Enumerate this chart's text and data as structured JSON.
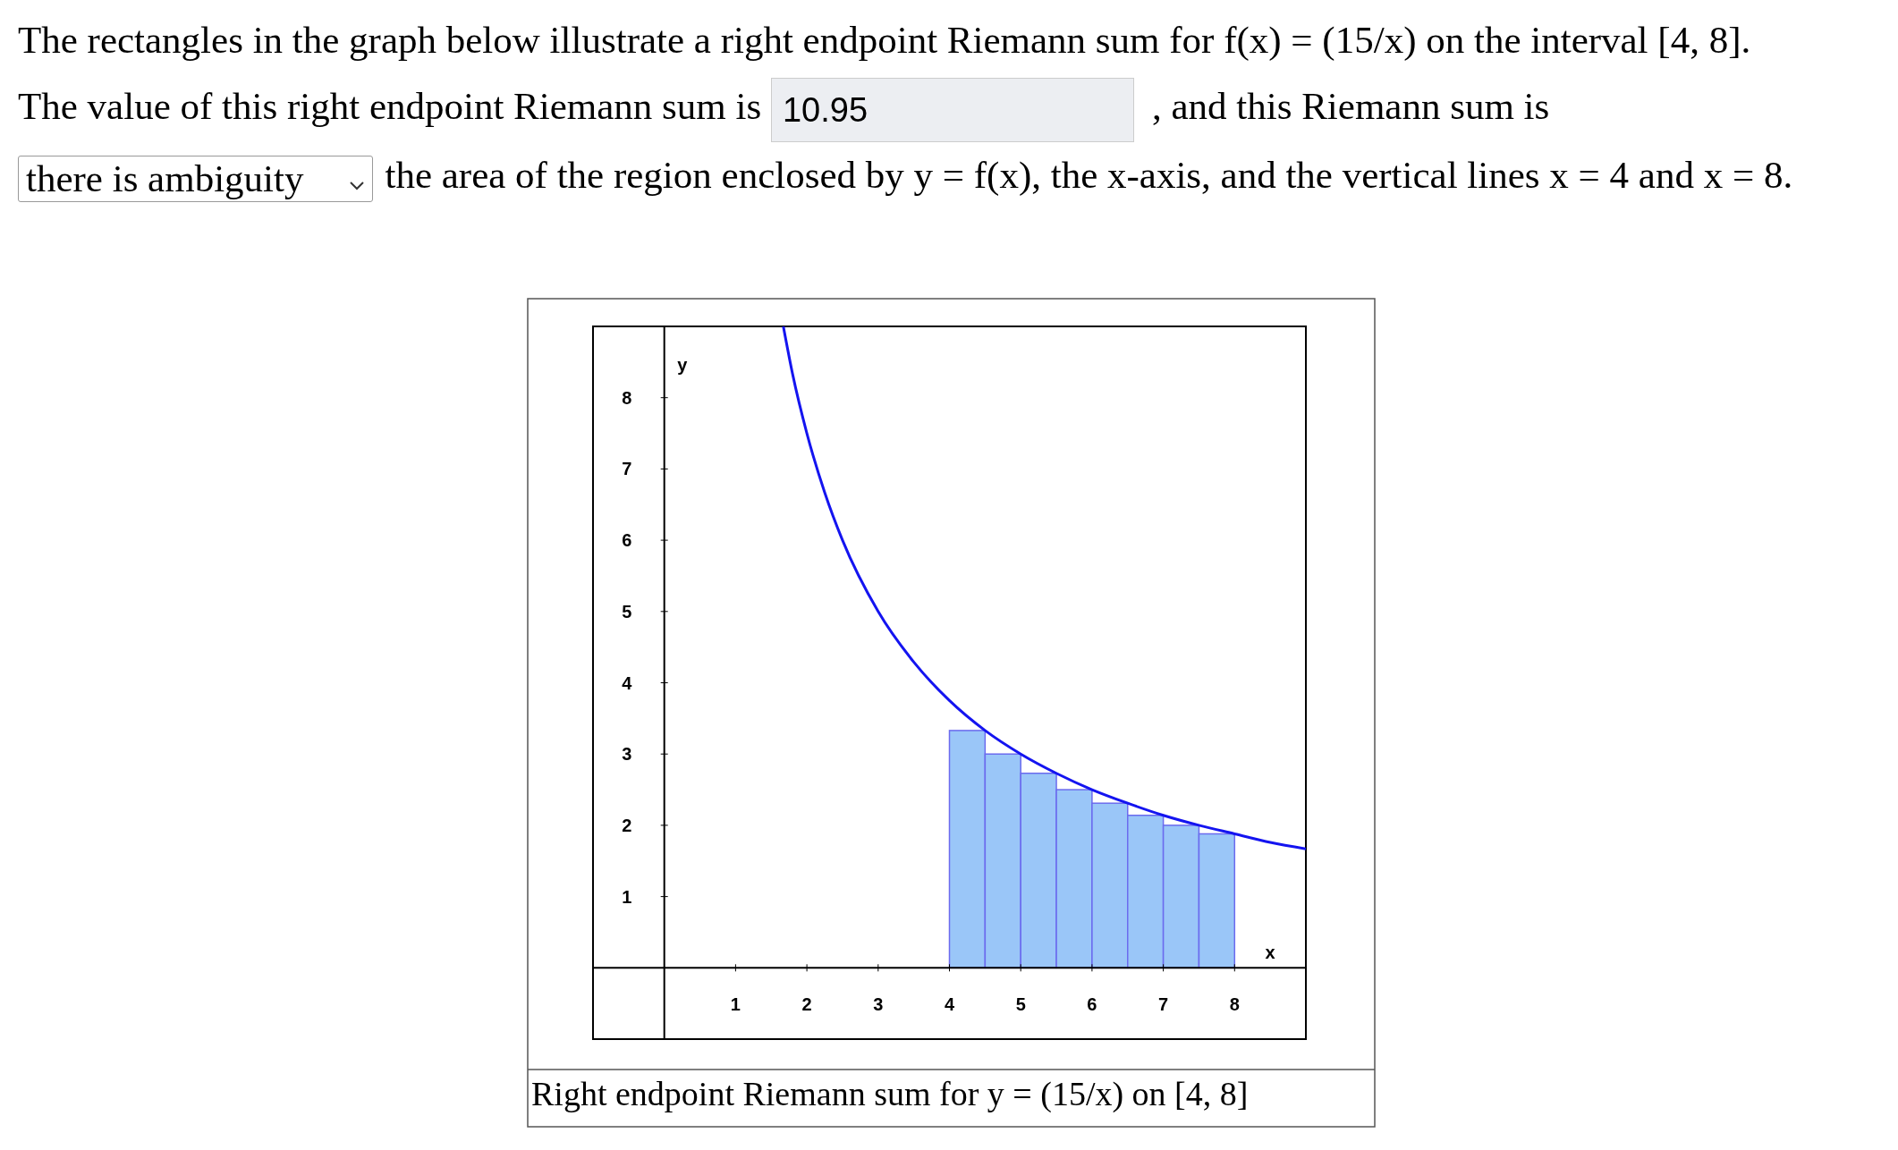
{
  "chart_data": {
    "type": "bar",
    "title": "Right endpoint Riemann sum for y = (15/x) on [4, 8]",
    "xlabel": "x",
    "ylabel": "y",
    "annotations": [
      "The rectangles in the graph below illustrate a right endpoint Riemann sum for f(x) = (15/x) on the interval [4, 8].",
      "The value of this right endpoint Riemann sum is",
      "10.95",
      ", and this Riemann sum is",
      "there is ambiguity",
      "the area of the region enclosed by y = f(x), the x-axis, and the vertical lines x = 4 and x = 8."
    ],
    "xlim": [
      -1,
      9
    ],
    "ylim": [
      -1,
      9
    ],
    "xticks": [
      1,
      2,
      3,
      4,
      5,
      6,
      7,
      8
    ],
    "yticks": [
      1,
      2,
      3,
      4,
      5,
      6,
      7,
      8
    ],
    "series": [
      {
        "color": "#9ac6f8",
        "x": [
          4.25,
          4.75,
          5.25,
          5.75,
          6.25,
          6.75,
          7.25,
          7.75
        ],
        "values": [
          3.33,
          3,
          2.73,
          2.5,
          2.31,
          2.14,
          2,
          1.88
        ]
      },
      {
        "type": "line",
        "color": "#1414f0",
        "x": [
          1.67,
          1.8,
          2,
          2.25,
          2.5,
          3,
          3.5,
          4,
          4.5,
          5,
          5.5,
          6,
          6.5,
          7,
          7.5,
          8,
          8.5,
          9
        ],
        "values": [
          9,
          8.33,
          7.5,
          6.67,
          6,
          5,
          4.29,
          3.75,
          3.33,
          3,
          2.73,
          2.5,
          2.31,
          2.14,
          2,
          1.88,
          1.76,
          1.67
        ]
      }
    ]
  }
}
